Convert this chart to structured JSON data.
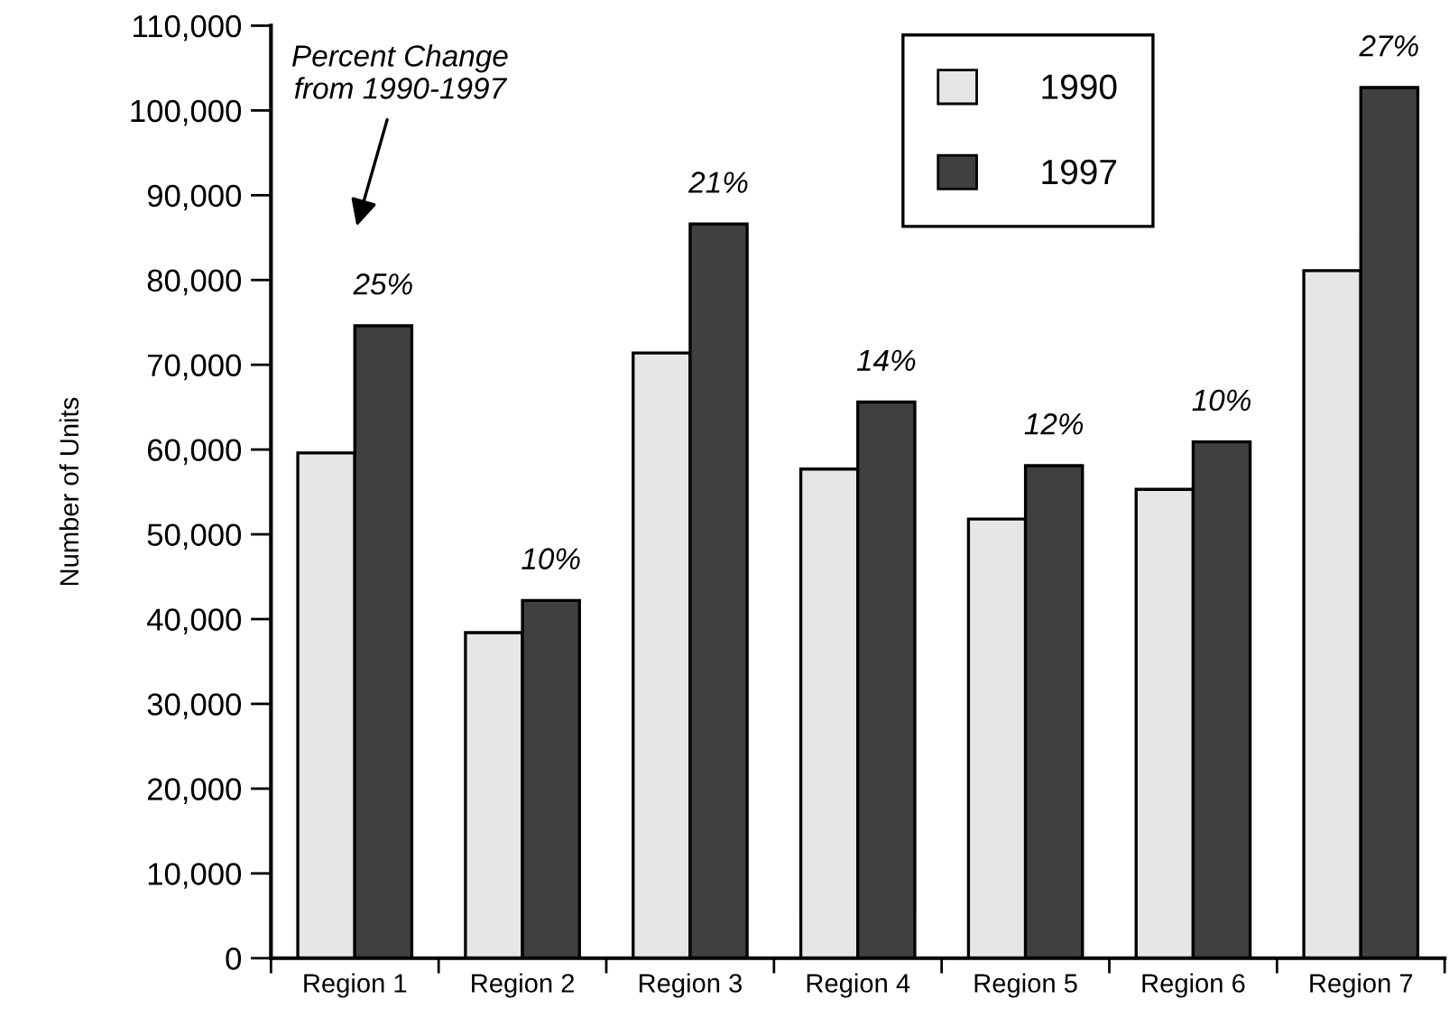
{
  "chart_data": {
    "type": "bar",
    "ylabel": "Number of Units",
    "categories": [
      "Region 1",
      "Region 2",
      "Region 3",
      "Region 4",
      "Region 5",
      "Region 6",
      "Region 7"
    ],
    "series": [
      {
        "name": "1990",
        "color": "#e6e6e6",
        "values": [
          59600,
          38400,
          71400,
          57700,
          51800,
          55300,
          81100
        ]
      },
      {
        "name": "1997",
        "color": "#404040",
        "values": [
          74600,
          42200,
          86600,
          65600,
          58100,
          60900,
          102700
        ]
      }
    ],
    "ylim": [
      0,
      110000
    ],
    "yticks": [
      {
        "value": 0,
        "label": "0"
      },
      {
        "value": 10000,
        "label": "10,000"
      },
      {
        "value": 20000,
        "label": "20,000"
      },
      {
        "value": 30000,
        "label": "30,000"
      },
      {
        "value": 40000,
        "label": "40,000"
      },
      {
        "value": 50000,
        "label": "50,000"
      },
      {
        "value": 60000,
        "label": "60,000"
      },
      {
        "value": 70000,
        "label": "70,000"
      },
      {
        "value": 80000,
        "label": "80,000"
      },
      {
        "value": 90000,
        "label": "90,000"
      },
      {
        "value": 100000,
        "label": "100,000"
      },
      {
        "value": 110000,
        "label": "110,000"
      }
    ],
    "annotations": [
      "Percent Change\nfrom 1990-1997",
      {
        "text": "25%",
        "x": "Region 1",
        "y": 74600
      },
      {
        "text": "10%",
        "x": "Region 2",
        "y": 42200
      },
      {
        "text": "21%",
        "x": "Region 3",
        "y": 86600
      },
      {
        "text": "14%",
        "x": "Region 4",
        "y": 65600
      },
      {
        "text": "12%",
        "x": "Region 5",
        "y": 58100
      },
      {
        "text": "10%",
        "x": "Region 6",
        "y": 60900
      },
      {
        "text": "27%",
        "x": "Region 7",
        "y": 102700
      }
    ],
    "grid": false,
    "legend": "top"
  }
}
